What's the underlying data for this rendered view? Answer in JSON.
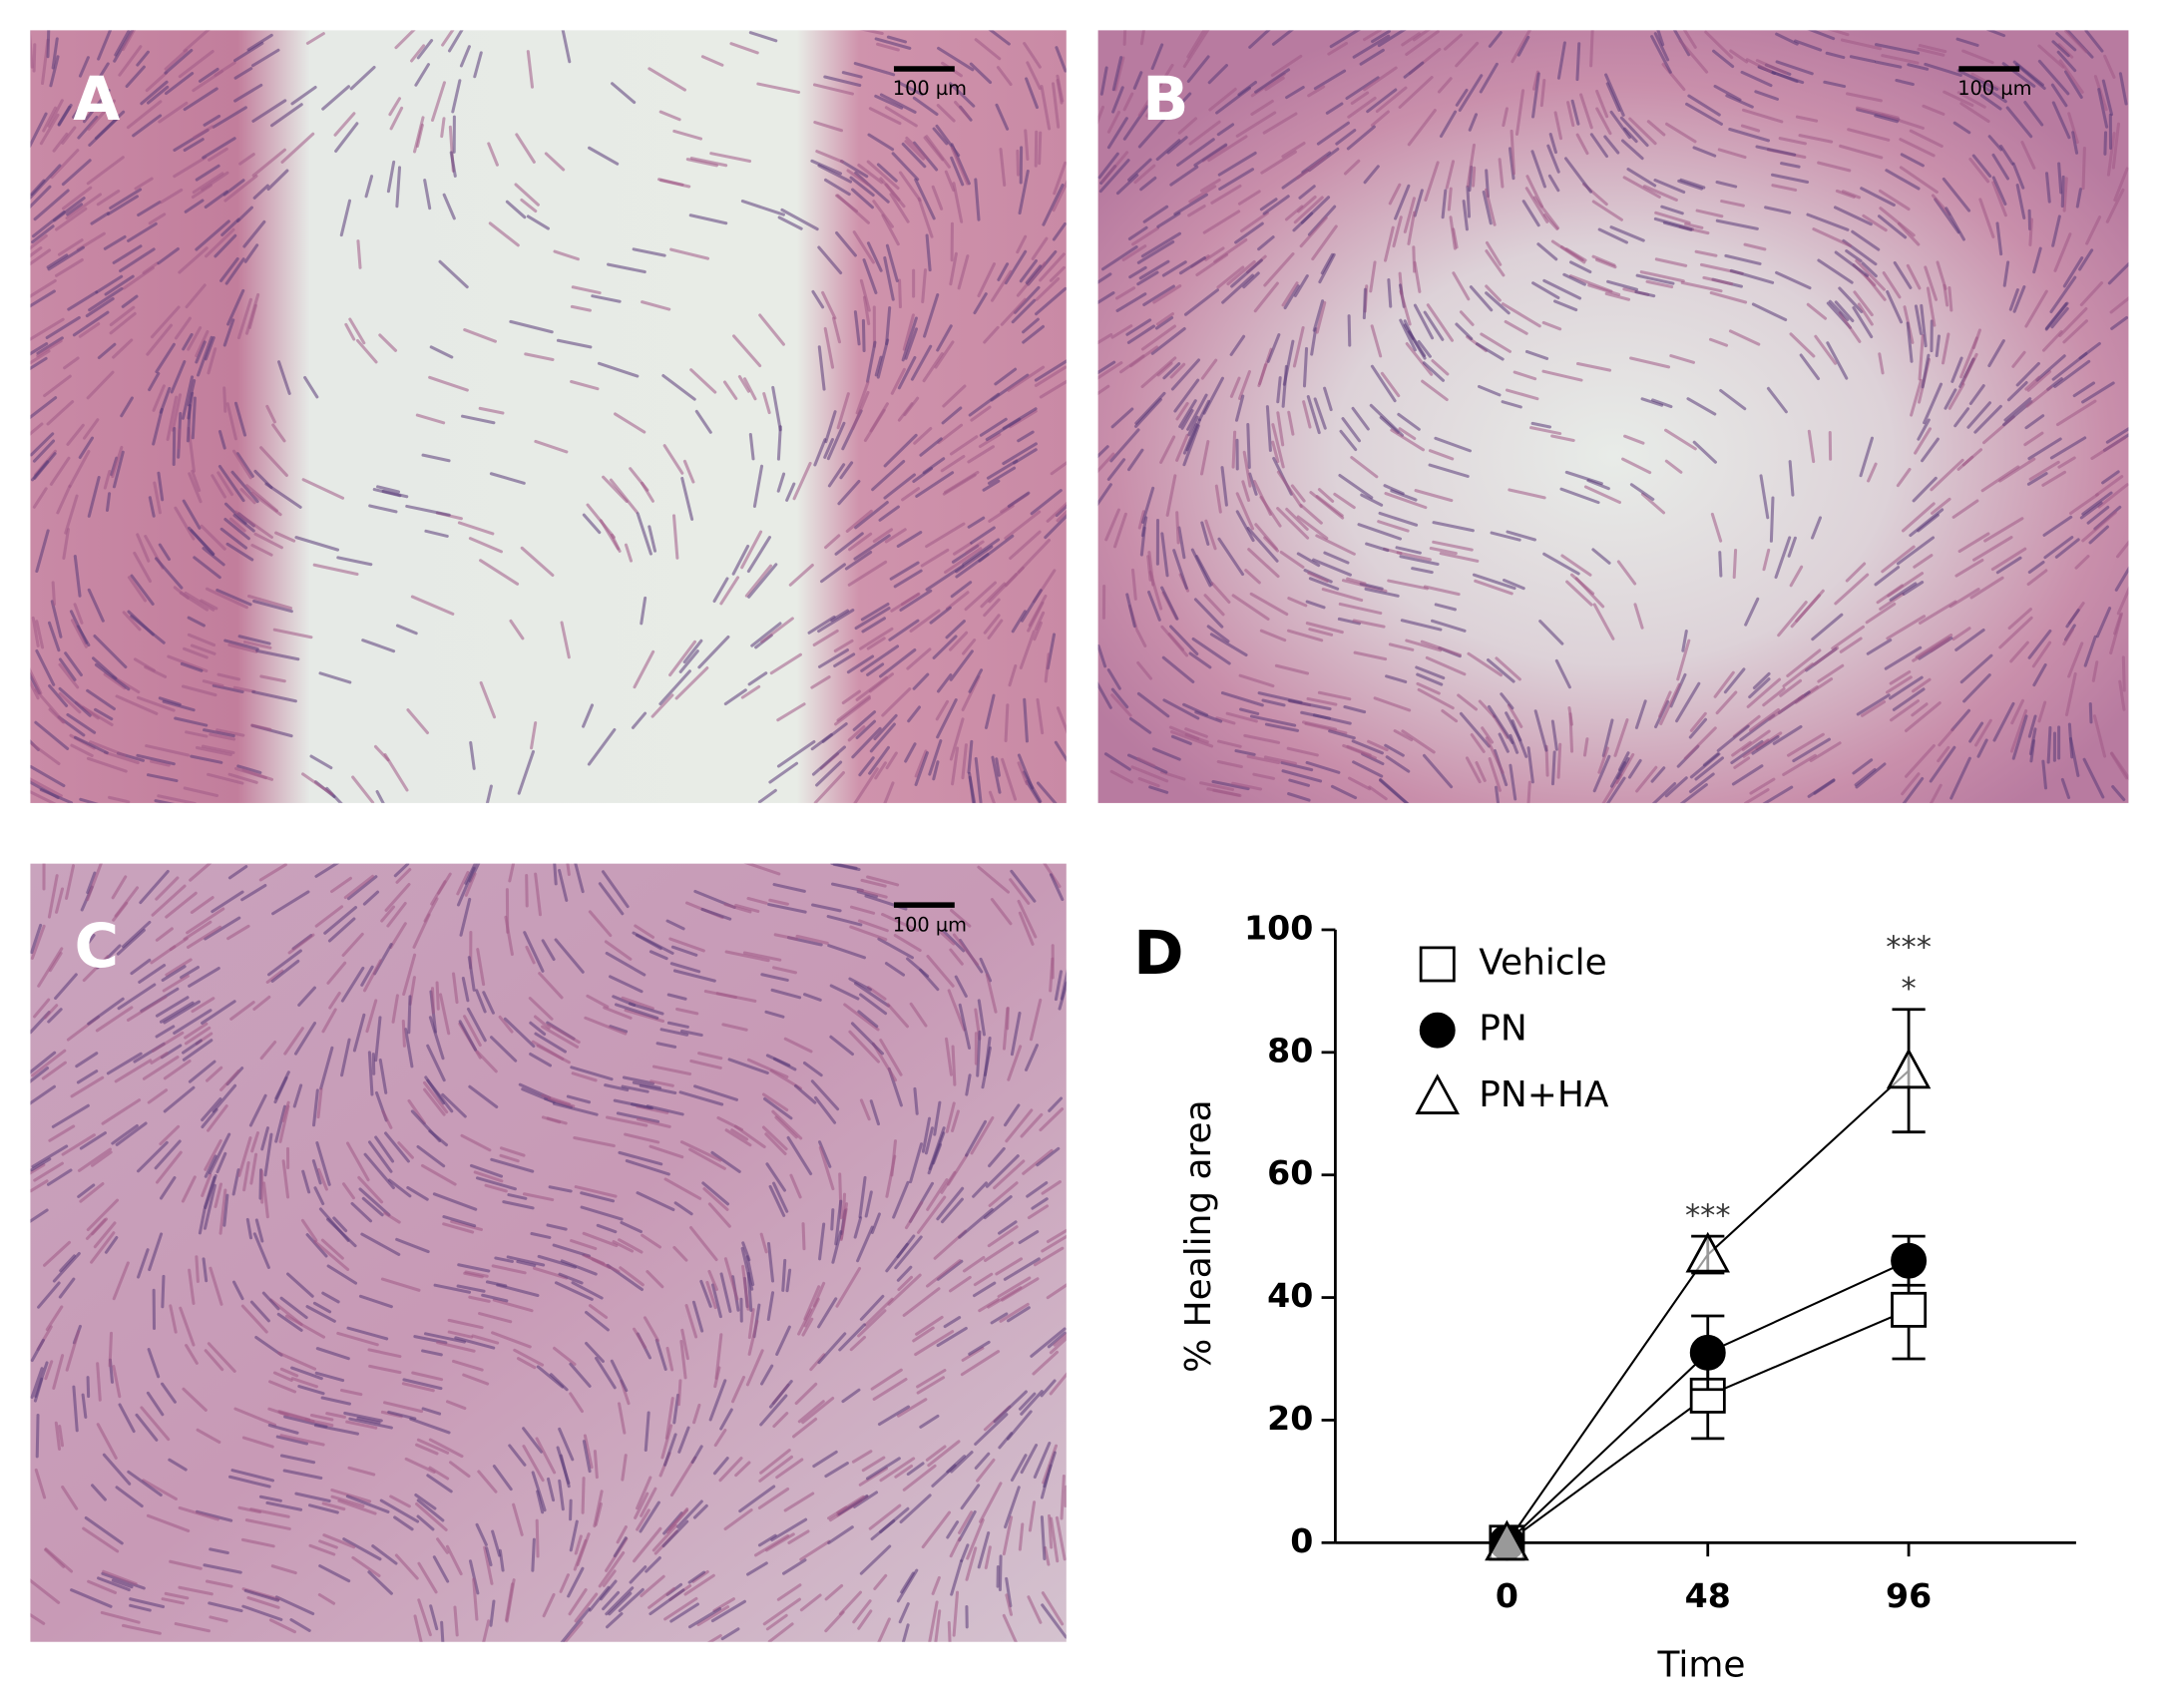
{
  "panels": [
    {
      "label": "A",
      "scale_bar": "100 µm"
    },
    {
      "label": "B",
      "scale_bar": "100 µm"
    },
    {
      "label": "C",
      "scale_bar": "100 µm"
    }
  ],
  "chart_data": {
    "type": "line",
    "panel_label": "D",
    "x_label": "Time",
    "y_label": "% Healing area",
    "x": [
      0,
      48,
      96
    ],
    "xlim": [
      -41,
      136
    ],
    "xticks": [
      0,
      48,
      96
    ],
    "ylim": [
      0,
      100
    ],
    "yticks": [
      0,
      20,
      40,
      60,
      80,
      100
    ],
    "series": [
      {
        "name": "Vehicle",
        "color": "#000000",
        "marker": "square",
        "values": [
          0,
          24,
          38
        ],
        "errors": [
          0,
          7,
          8
        ]
      },
      {
        "name": "PN",
        "color": "#000000",
        "marker": "circle",
        "values": [
          0,
          31,
          46
        ],
        "errors": [
          0,
          6,
          4
        ]
      },
      {
        "name": "PN+HA",
        "color": "#000000",
        "marker": "triangle",
        "values": [
          0,
          47,
          77
        ],
        "errors": [
          0,
          3,
          10
        ]
      }
    ],
    "annotations": [
      {
        "text": "***",
        "x": 48
      },
      {
        "text": "***",
        "x": 96
      },
      {
        "text": "*",
        "x": 96
      }
    ]
  }
}
